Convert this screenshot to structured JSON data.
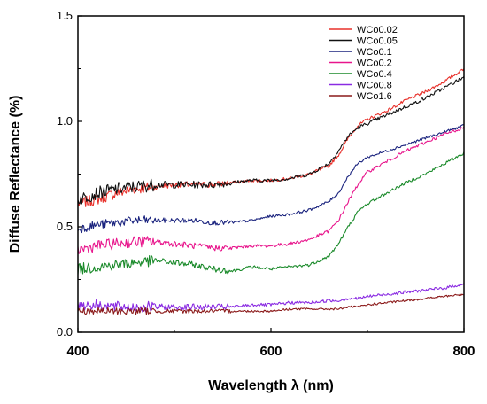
{
  "chart_data": {
    "type": "line",
    "title": "",
    "xlabel": "Wavelength λ (nm)",
    "ylabel": "Diffuse Reflectance (%)",
    "xlim": [
      400,
      800
    ],
    "ylim": [
      0.0,
      1.5
    ],
    "x_ticks": [
      {
        "value": 400,
        "label": "400"
      },
      {
        "value": 600,
        "label": "600"
      },
      {
        "value": 800,
        "label": "800"
      }
    ],
    "y_ticks": [
      {
        "value": 0.0,
        "label": "0.0"
      },
      {
        "value": 0.5,
        "label": "0.5"
      },
      {
        "value": 1.0,
        "label": "1.0"
      },
      {
        "value": 1.5,
        "label": "1.5"
      }
    ],
    "grid": false,
    "legend_position": "top-right",
    "x": [
      400,
      420,
      440,
      460,
      480,
      500,
      520,
      540,
      560,
      580,
      600,
      620,
      640,
      660,
      670,
      680,
      690,
      700,
      720,
      740,
      760,
      780,
      800
    ],
    "series": [
      {
        "name": "WCo0.02",
        "color": "#e8302a",
        "noise": 0.012,
        "values": [
          0.61,
          0.63,
          0.66,
          0.68,
          0.69,
          0.7,
          0.7,
          0.7,
          0.71,
          0.72,
          0.72,
          0.73,
          0.75,
          0.79,
          0.84,
          0.92,
          0.98,
          1.01,
          1.05,
          1.1,
          1.14,
          1.19,
          1.25
        ]
      },
      {
        "name": "WCo0.05",
        "color": "#111111",
        "noise": 0.014,
        "values": [
          0.63,
          0.66,
          0.68,
          0.69,
          0.7,
          0.7,
          0.7,
          0.7,
          0.71,
          0.72,
          0.72,
          0.73,
          0.75,
          0.8,
          0.86,
          0.93,
          0.97,
          0.99,
          1.03,
          1.07,
          1.11,
          1.16,
          1.21
        ]
      },
      {
        "name": "WCo0.1",
        "color": "#1a237e",
        "noise": 0.01,
        "values": [
          0.49,
          0.51,
          0.52,
          0.53,
          0.53,
          0.53,
          0.53,
          0.52,
          0.52,
          0.53,
          0.55,
          0.56,
          0.58,
          0.62,
          0.66,
          0.74,
          0.8,
          0.83,
          0.86,
          0.89,
          0.92,
          0.95,
          0.98
        ]
      },
      {
        "name": "WCo0.2",
        "color": "#e8158c",
        "noise": 0.012,
        "values": [
          0.39,
          0.41,
          0.42,
          0.43,
          0.43,
          0.42,
          0.41,
          0.4,
          0.4,
          0.41,
          0.41,
          0.42,
          0.44,
          0.48,
          0.53,
          0.62,
          0.7,
          0.76,
          0.81,
          0.86,
          0.9,
          0.94,
          0.97
        ]
      },
      {
        "name": "WCo0.4",
        "color": "#1a8a2a",
        "noise": 0.012,
        "values": [
          0.3,
          0.31,
          0.32,
          0.33,
          0.34,
          0.33,
          0.32,
          0.3,
          0.29,
          0.31,
          0.3,
          0.31,
          0.32,
          0.36,
          0.42,
          0.5,
          0.57,
          0.61,
          0.66,
          0.71,
          0.75,
          0.8,
          0.85
        ]
      },
      {
        "name": "WCo0.8",
        "color": "#8a2be2",
        "noise": 0.012,
        "values": [
          0.13,
          0.13,
          0.12,
          0.12,
          0.12,
          0.12,
          0.12,
          0.12,
          0.12,
          0.13,
          0.13,
          0.14,
          0.14,
          0.15,
          0.15,
          0.16,
          0.16,
          0.17,
          0.18,
          0.19,
          0.2,
          0.21,
          0.23
        ]
      },
      {
        "name": "WCo1.6",
        "color": "#8b1a1a",
        "noise": 0.008,
        "values": [
          0.1,
          0.1,
          0.1,
          0.1,
          0.1,
          0.1,
          0.1,
          0.1,
          0.1,
          0.1,
          0.1,
          0.11,
          0.11,
          0.11,
          0.11,
          0.12,
          0.12,
          0.13,
          0.14,
          0.15,
          0.16,
          0.17,
          0.18
        ]
      }
    ]
  }
}
